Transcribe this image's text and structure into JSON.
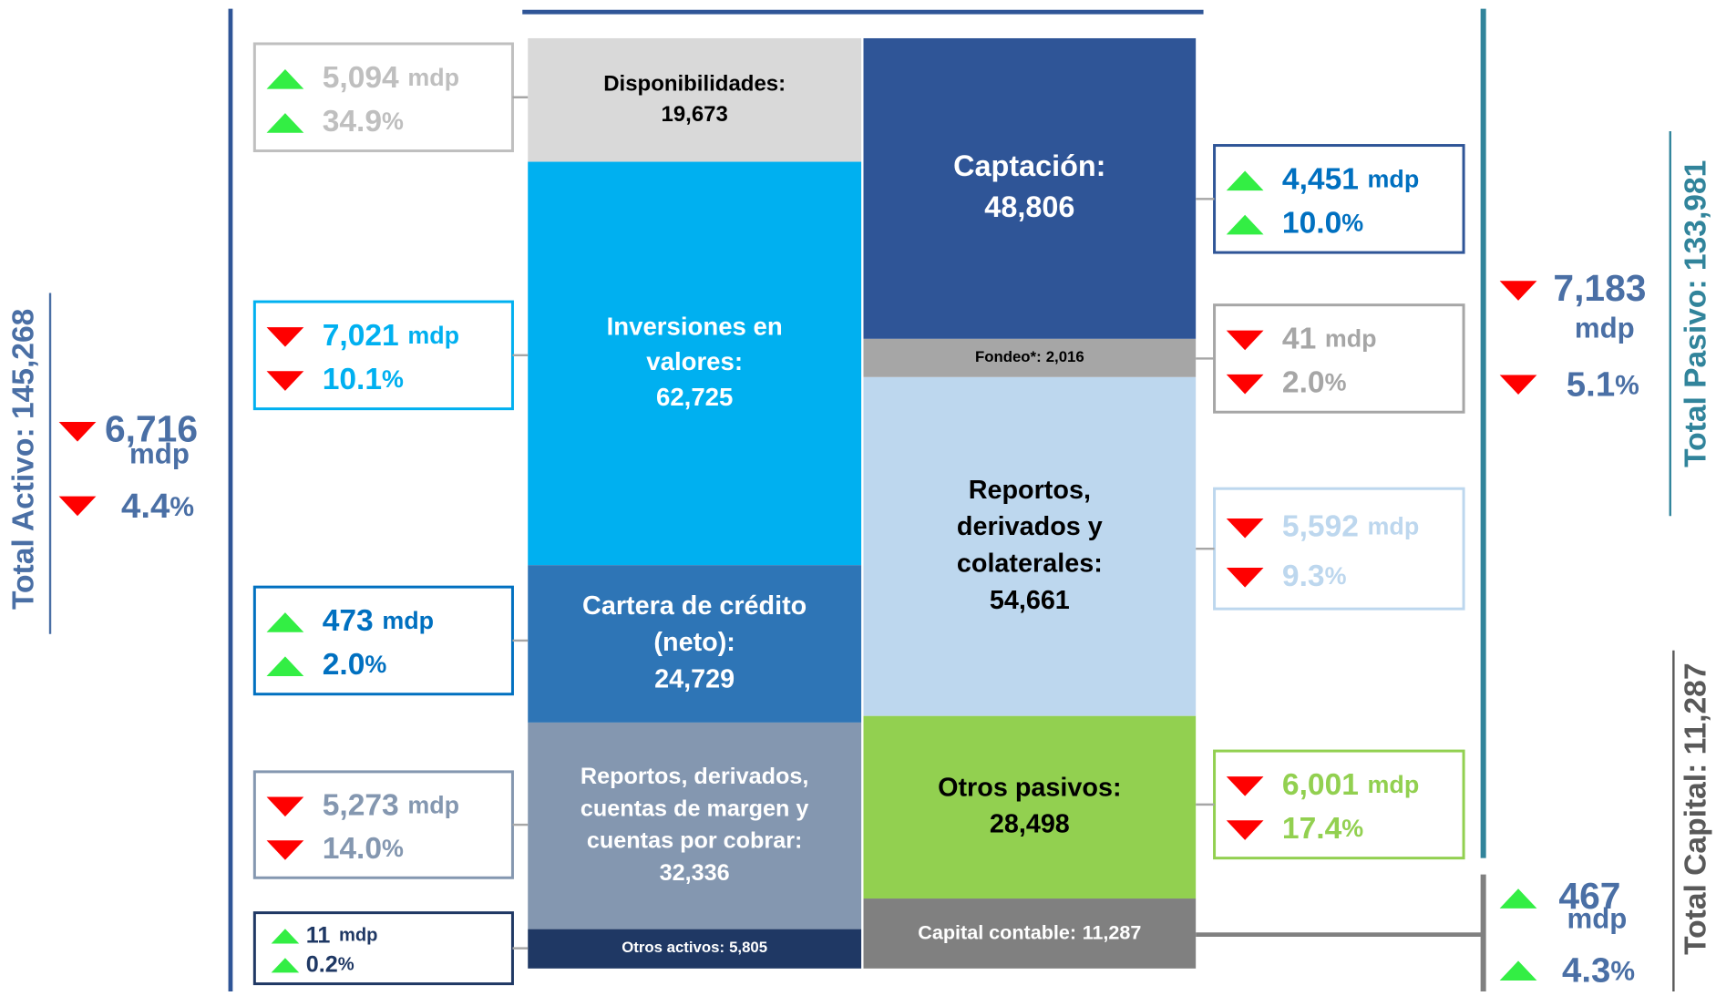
{
  "assets": {
    "total": {
      "label": "Total Activo: 145,268",
      "color": "#4a6fa5"
    },
    "change": {
      "direction": "down",
      "amount": "6,716",
      "unit": "mdp",
      "pct": "4.4",
      "pct_unit": "%",
      "text_color": "#4a6fa5"
    },
    "blocks": [
      {
        "label": [
          "Disponibilidades:"
        ],
        "value": "19,673",
        "color": "#d9d9d9",
        "text_color": "#000000",
        "change": {
          "direction": "up",
          "amount": "5,094",
          "unit": "mdp",
          "pct": "34.9",
          "pct_unit": "%",
          "color": "#bfbfbf",
          "text_color": "#bfbfbf"
        }
      },
      {
        "label": [
          "Inversiones en",
          "valores:"
        ],
        "value": "62,725",
        "color": "#00b0f0",
        "text_color": "#ffffff",
        "change": {
          "direction": "down",
          "amount": "7,021",
          "unit": "mdp",
          "pct": "10.1",
          "pct_unit": "%",
          "color": "#00b0f0",
          "text_color": "#00b0f0"
        }
      },
      {
        "label": [
          "Cartera de crédito",
          "(neto):"
        ],
        "value": "24,729",
        "color": "#2e75b6",
        "text_color": "#ffffff",
        "change": {
          "direction": "up",
          "amount": "473",
          "unit": "mdp",
          "pct": "2.0",
          "pct_unit": "%",
          "color": "#0070c0",
          "text_color": "#0070c0"
        }
      },
      {
        "label": [
          "Reportos, derivados,",
          "cuentas de margen y",
          "cuentas por cobrar:"
        ],
        "value": "32,336",
        "color": "#8497b0",
        "text_color": "#ffffff",
        "change": {
          "direction": "down",
          "amount": "5,273",
          "unit": "mdp",
          "pct": "14.0",
          "pct_unit": "%",
          "color": "#8497b0",
          "text_color": "#8497b0"
        }
      },
      {
        "label": [
          "Otros activos:"
        ],
        "value": "5,805",
        "color": "#1f3864",
        "text_color": "#ffffff",
        "inline": true,
        "change": {
          "direction": "up",
          "amount": "11",
          "unit": "mdp",
          "pct": "0.2",
          "pct_unit": "%",
          "color": "#1f3864",
          "text_color": "#1f3864"
        }
      }
    ]
  },
  "liabilities": {
    "total": {
      "label": "Total Pasivo: 133,981",
      "color": "#31849b"
    },
    "change": {
      "direction": "down",
      "amount": "7,183",
      "unit": "mdp",
      "pct": "5.1",
      "pct_unit": "%",
      "text_color": "#4a6fa5"
    },
    "blocks": [
      {
        "label": [
          "Captación:"
        ],
        "value": "48,806",
        "color": "#2f5597",
        "text_color": "#ffffff",
        "change": {
          "direction": "up",
          "amount": "4,451",
          "unit": "mdp",
          "pct": "10.0",
          "pct_unit": "%",
          "color": "#2f5597",
          "text_color": "#0070c0"
        }
      },
      {
        "label": [
          "Fondeo*:"
        ],
        "value": "2,016",
        "color": "#a6a6a6",
        "text_color": "#000000",
        "inline": true,
        "change": {
          "direction": "down",
          "amount": "41",
          "unit": "mdp",
          "pct": "2.0",
          "pct_unit": "%",
          "color": "#a6a6a6",
          "text_color": "#a6a6a6"
        }
      },
      {
        "label": [
          "Reportos,",
          "derivados y",
          "colaterales:"
        ],
        "value": "54,661",
        "color": "#bdd7ee",
        "text_color": "#000000",
        "change": {
          "direction": "down",
          "amount": "5,592",
          "unit": "mdp",
          "pct": "9.3",
          "pct_unit": "%",
          "color": "#bdd7ee",
          "text_color": "#bdd7ee"
        }
      },
      {
        "label": [
          "Otros pasivos:"
        ],
        "value": "28,498",
        "color": "#92d050",
        "text_color": "#000000",
        "change": {
          "direction": "down",
          "amount": "6,001",
          "unit": "mdp",
          "pct": "17.4",
          "pct_unit": "%",
          "color": "#92d050",
          "text_color": "#92d050"
        }
      }
    ]
  },
  "capital": {
    "total": {
      "label": "Total Capital: 11,287",
      "color": "#595959"
    },
    "change": {
      "direction": "up",
      "amount": "467",
      "unit": "mdp",
      "pct": "4.3",
      "pct_unit": "%",
      "text_color": "#4a6fa5"
    },
    "block": {
      "label": [
        "Capital contable:"
      ],
      "value": "11,287",
      "color": "#808080",
      "text_color": "#ffffff",
      "inline": true
    }
  }
}
